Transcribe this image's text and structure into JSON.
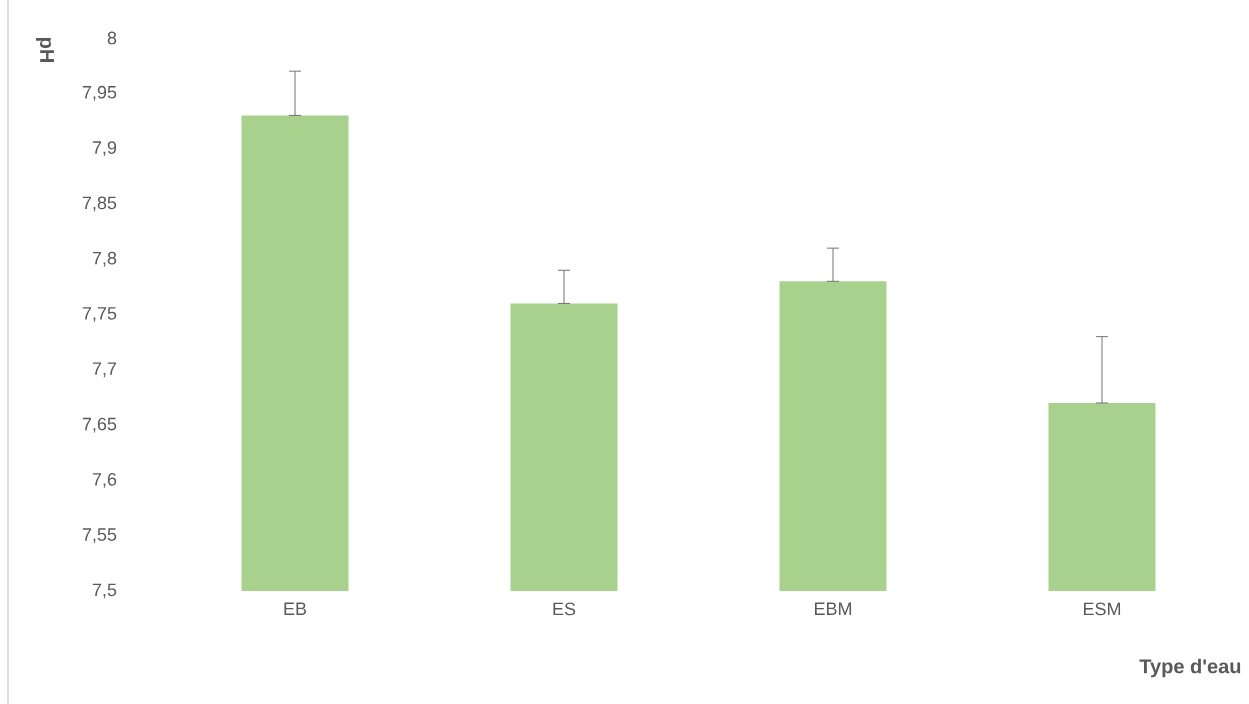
{
  "chart_data": {
    "type": "bar",
    "xlabel": "Type d'eau",
    "ylabel": "pH",
    "categories": [
      "EB",
      "ES",
      "EBM",
      "ESM"
    ],
    "values": [
      7.93,
      7.76,
      7.78,
      7.67
    ],
    "errors": [
      [
        7.93,
        7.97
      ],
      [
        7.76,
        7.79
      ],
      [
        7.78,
        7.81
      ],
      [
        7.67,
        7.73
      ]
    ],
    "color": "#a9d18e",
    "ylim": [
      7.5,
      8
    ],
    "yticks": [
      {
        "value": 7.5,
        "label": "7,5"
      },
      {
        "value": 7.55,
        "label": "7,55"
      },
      {
        "value": 7.6,
        "label": "7,6"
      },
      {
        "value": 7.65,
        "label": "7,65"
      },
      {
        "value": 7.7,
        "label": "7,7"
      },
      {
        "value": 7.75,
        "label": "7,75"
      },
      {
        "value": 7.8,
        "label": "7,8"
      },
      {
        "value": 7.85,
        "label": "7,85"
      },
      {
        "value": 7.9,
        "label": "7,9"
      },
      {
        "value": 7.95,
        "label": "7,95"
      },
      {
        "value": 8,
        "label": "8"
      }
    ],
    "grid": false
  }
}
